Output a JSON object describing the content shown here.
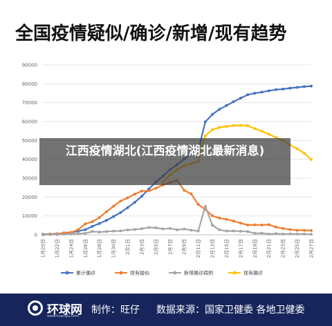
{
  "header": {
    "title": "全国疫情疑似/确诊/新增/现有趋势"
  },
  "overlay": {
    "text": "江西疫情湖北(江西疫情湖北最新消息)"
  },
  "footer": {
    "logo_text": "环球网",
    "logo_sub": "www.huanqiu.com",
    "maker": "制作：旺仔",
    "source": "数据来源：国家卫健委 各地卫健委"
  },
  "colors": {
    "累计确诊": "#4472c4",
    "现有疑似": "#ed7d31",
    "新增确诊病例": "#a5a5a5",
    "现有确诊": "#ffc000"
  },
  "chart_data": {
    "type": "line",
    "x": [
      "1月20日",
      "1月21日",
      "1月22日",
      "1月23日",
      "1月24日",
      "1月25日",
      "1月26日",
      "1月27日",
      "1月28日",
      "1月29日",
      "1月30日",
      "1月31日",
      "2月1日",
      "2月2日",
      "2月3日",
      "2月4日",
      "2月5日",
      "2月6日",
      "2月7日",
      "2月8日",
      "2月9日",
      "2月10日",
      "2月11日",
      "2月12日",
      "2月13日",
      "2月14日",
      "2月15日",
      "2月16日",
      "2月17日",
      "2月18日",
      "2月19日",
      "2月20日",
      "2月21日",
      "2月22日",
      "2月23日",
      "2月24日",
      "2月25日",
      "2月26日",
      "2月27日"
    ],
    "x_tick_labels": [
      "1月20日",
      "1月22日",
      "1月24日",
      "1月26日",
      "1月28日",
      "1月30日",
      "2月1日",
      "2月3日",
      "2月5日",
      "2月7日",
      "2月9日",
      "2月11日",
      "2月13日",
      "2月15日",
      "2月17日",
      "2月19日",
      "2月21日",
      "2月23日",
      "2月25日",
      "2月27日"
    ],
    "ylim": [
      0,
      90000
    ],
    "y_ticks": [
      0,
      10000,
      20000,
      30000,
      40000,
      50000,
      60000,
      70000,
      80000,
      90000
    ],
    "grid": true,
    "legend_position": "bottom",
    "series": [
      {
        "name": "累计确诊",
        "values": [
          300,
          440,
          570,
          830,
          1290,
          1980,
          2740,
          4500,
          6000,
          7700,
          9700,
          11800,
          14400,
          17200,
          20400,
          24300,
          28000,
          31200,
          34500,
          37200,
          40200,
          42600,
          44600,
          59800,
          63800,
          66500,
          68500,
          70500,
          72400,
          74200,
          75000,
          75600,
          76300,
          76900,
          77200,
          77700,
          78100,
          78500,
          78800
        ]
      },
      {
        "name": "现有疑似",
        "values": [
          0,
          400,
          400,
          1100,
          1300,
          2700,
          5800,
          6900,
          9200,
          12200,
          15200,
          17900,
          19600,
          21500,
          23200,
          23300,
          24700,
          26400,
          27700,
          28900,
          23600,
          21700,
          16100,
          13400,
          10100,
          8900,
          8200,
          7300,
          6200,
          5200,
          5300,
          5200,
          5400,
          4100,
          3400,
          2800,
          2400,
          2400,
          2300
        ]
      },
      {
        "name": "新增确诊病例",
        "values": [
          77,
          149,
          131,
          259,
          444,
          688,
          769,
          1771,
          1459,
          1737,
          1982,
          2102,
          2590,
          2829,
          3235,
          3887,
          3694,
          3143,
          3399,
          2656,
          3062,
          2478,
          2015,
          15152,
          5090,
          2641,
          2009,
          2048,
          1886,
          1749,
          820,
          889,
          397,
          648,
          409,
          508,
          406,
          433,
          327
        ]
      },
      {
        "name": "现有确诊",
        "values": [
          0,
          0,
          0,
          0,
          0,
          0,
          0,
          0,
          0,
          0,
          0,
          0,
          0,
          0,
          0,
          0,
          0,
          28000,
          31800,
          34500,
          36600,
          37700,
          38800,
          52500,
          55700,
          56900,
          57400,
          57900,
          58000,
          57800,
          56300,
          54900,
          53300,
          51600,
          49800,
          47700,
          45600,
          43300,
          39900
        ]
      }
    ]
  }
}
